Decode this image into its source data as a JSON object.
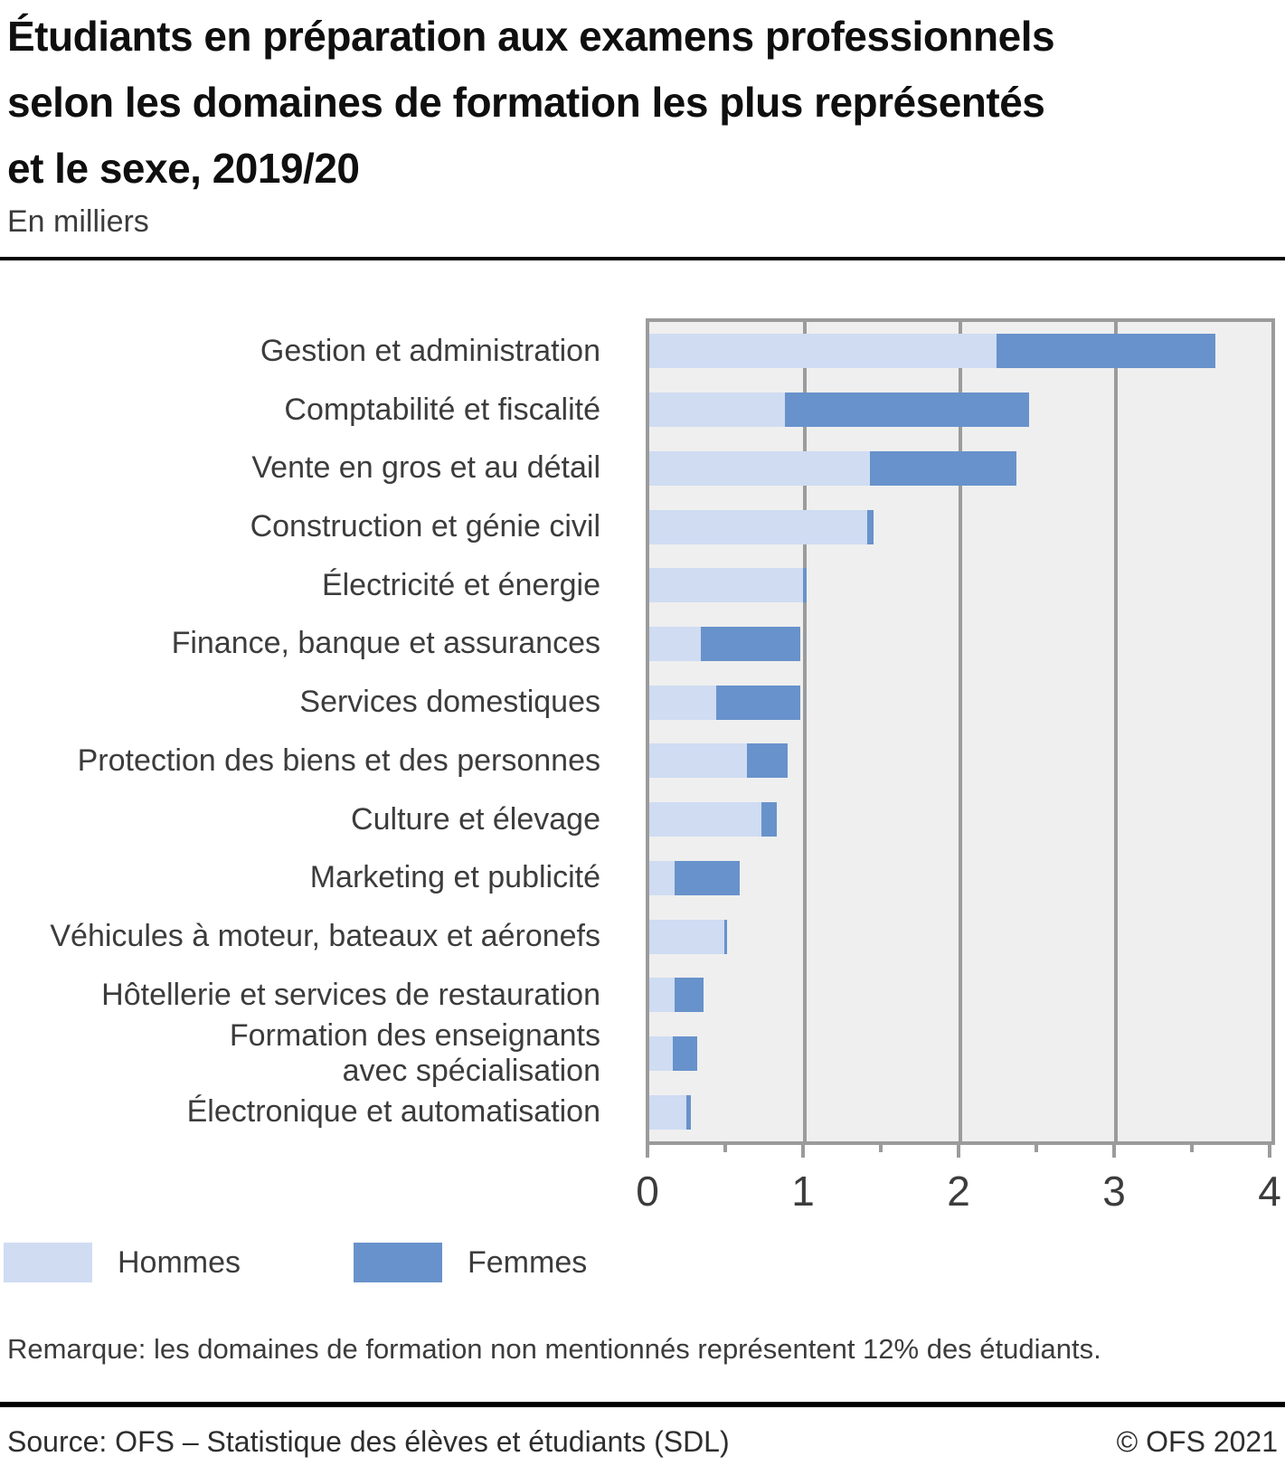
{
  "header": {
    "title_lines": [
      "Étudiants en préparation aux examens professionnels",
      "selon les domaines de formation les plus représentés",
      "et le sexe, 2019/20"
    ],
    "subtitle": "En milliers"
  },
  "legend": {
    "items": [
      {
        "label": "Hommes",
        "color": "#cfdcf2"
      },
      {
        "label": "Femmes",
        "color": "#6892cb"
      }
    ]
  },
  "remark": "Remarque: les domaines de formation non mentionnés représentent 12% des étudiants.",
  "footer": {
    "source": "Source: OFS – Statistique des élèves et étudiants (SDL)",
    "copyright": "© OFS 2021"
  },
  "chart_data": {
    "type": "bar",
    "orientation": "horizontal",
    "stacked": true,
    "title": "Étudiants en préparation aux examens professionnels selon les domaines de formation les plus représentés et le sexe, 2019/20",
    "unit_label": "En milliers",
    "categories": [
      "Gestion et administration",
      "Comptabilité et fiscalité",
      "Vente en gros et au détail",
      "Construction et génie civil",
      "Électricité et énergie",
      "Finance, banque et assurances",
      "Services domestiques",
      "Protection des biens et des personnes",
      "Culture et élevage",
      "Marketing et publicité",
      "Véhicules à moteur, bateaux et aéronefs",
      "Hôtellerie et services de restauration",
      "Formation des enseignants\navec spécialisation",
      "Électronique et automatisation"
    ],
    "series": [
      {
        "name": "Hommes",
        "color": "#cfdcf2",
        "values": [
          2.23,
          0.87,
          1.42,
          1.4,
          0.99,
          0.33,
          0.43,
          0.63,
          0.72,
          0.16,
          0.48,
          0.16,
          0.15,
          0.24
        ]
      },
      {
        "name": "Femmes",
        "color": "#6892cb",
        "values": [
          1.41,
          1.57,
          0.94,
          0.04,
          0.02,
          0.64,
          0.54,
          0.26,
          0.1,
          0.42,
          0.02,
          0.19,
          0.16,
          0.03
        ]
      }
    ],
    "xlim": [
      0,
      4
    ],
    "xticks": [
      0,
      1,
      2,
      3,
      4
    ],
    "minor_xticks": [
      0.5,
      1.5,
      2.5,
      3.5
    ],
    "grid": "vertical-major",
    "plot_background": "#efefef",
    "grid_color": "#9b9b9b",
    "legend_position": "bottom-left"
  }
}
